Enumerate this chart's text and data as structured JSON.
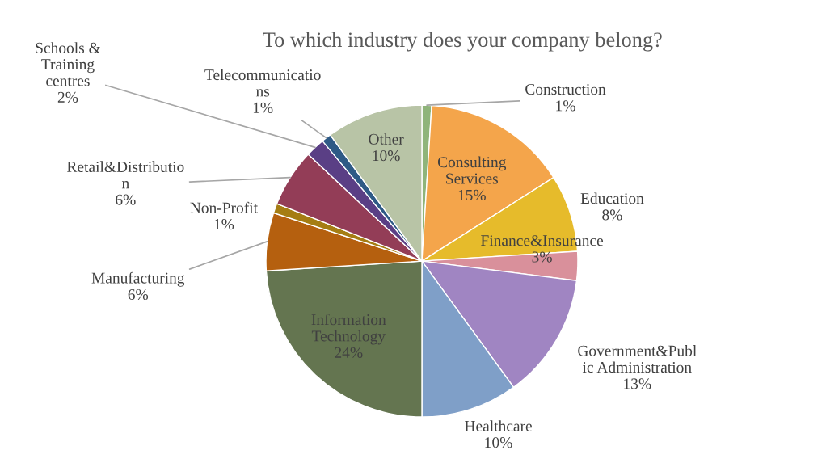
{
  "chart_data": {
    "type": "pie",
    "title": "To which industry does your company belong?",
    "categories": [
      "Construction",
      "Consulting\nServices",
      "Education",
      "Finance&Insurance",
      "Government&Publ\nic Administration",
      "Healthcare",
      "Information\nTechnology",
      "Manufacturing",
      "Non-Profit",
      "Retail&Distributio\nn",
      "Schools &\nTraining\ncentres",
      "Telecommunicatio\nns",
      "Other"
    ],
    "values": [
      1,
      15,
      8,
      3,
      13,
      10,
      24,
      6,
      1,
      6,
      2,
      1,
      10
    ],
    "colors": [
      "#8fb47a",
      "#f4a54b",
      "#e6bb2b",
      "#d9909b",
      "#a085c2",
      "#7f9fc8",
      "#647550",
      "#b5600f",
      "#a57d13",
      "#933d57",
      "#5a3f85",
      "#2e5a86",
      "#b8c4a6"
    ],
    "value_labels": [
      "1%",
      "15%",
      "8%",
      "3%",
      "13%",
      "10%",
      "24%",
      "6%",
      "1%",
      "6%",
      "2%",
      "1%",
      "10%"
    ]
  }
}
